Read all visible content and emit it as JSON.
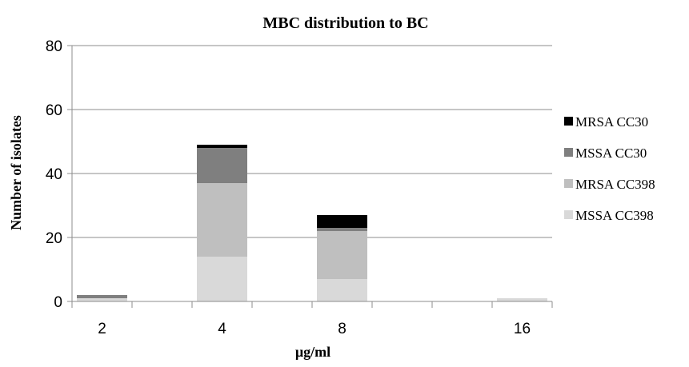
{
  "chart_data": {
    "type": "bar",
    "stacked": true,
    "title": "MBC distribution to BC",
    "xlabel": "µg/ml",
    "ylabel": "Number of isolates",
    "categories": [
      "2",
      "",
      "4",
      "",
      "8",
      "",
      "",
      "16"
    ],
    "ylim": [
      0,
      80
    ],
    "yticks": [
      0,
      20,
      40,
      60,
      80
    ],
    "grid": true,
    "legend_position": "right",
    "series": [
      {
        "name": "MSSA CC398",
        "color": "#d9d9d9",
        "values": [
          1,
          0,
          14,
          0,
          7,
          0,
          0,
          1
        ]
      },
      {
        "name": "MRSA CC398",
        "color": "#bfbfbf",
        "values": [
          0,
          0,
          23,
          0,
          15,
          0,
          0,
          0
        ]
      },
      {
        "name": "MSSA CC30",
        "color": "#7f7f7f",
        "values": [
          1,
          0,
          11,
          0,
          1,
          0,
          0,
          0
        ]
      },
      {
        "name": "MRSA CC30",
        "color": "#000000",
        "values": [
          0,
          0,
          1,
          0,
          4,
          0,
          0,
          0
        ]
      }
    ],
    "legend_order": [
      "MRSA CC30",
      "MSSA CC30",
      "MRSA CC398",
      "MSSA CC398"
    ]
  }
}
